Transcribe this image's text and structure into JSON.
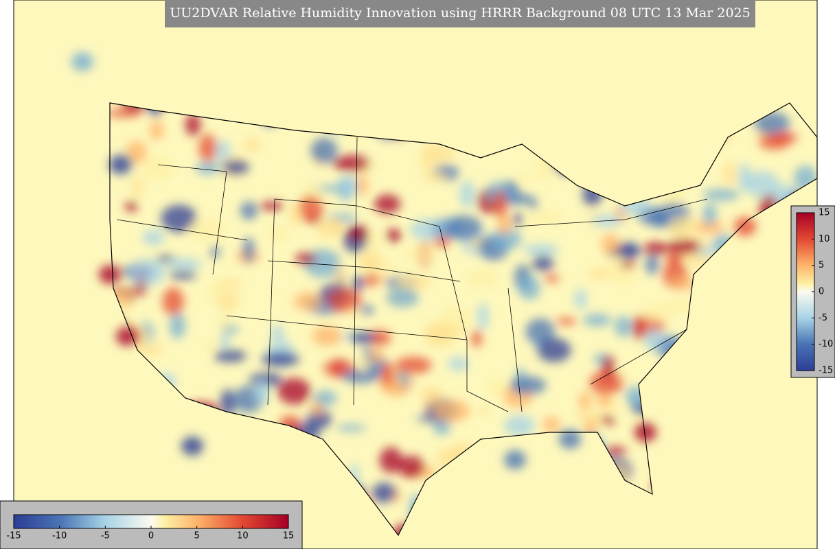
{
  "title": "UU2DVAR Relative Humidity Innovation using HRRR Background 08 UTC 13 Mar 2025",
  "colorbars": [
    {
      "orientation": "horizontal",
      "range": [
        -15,
        15
      ],
      "ticks": [
        -15,
        -10,
        -5,
        0,
        5,
        10,
        15
      ]
    },
    {
      "orientation": "vertical",
      "range": [
        -15,
        15
      ],
      "ticks": [
        -15,
        -10,
        -5,
        0,
        5,
        10,
        15
      ]
    }
  ]
}
